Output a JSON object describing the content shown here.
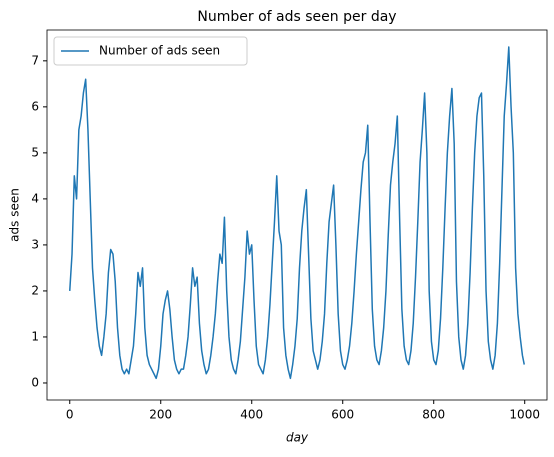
{
  "chart_data": {
    "type": "line",
    "title": "Number of ads seen per day",
    "x_label": "day",
    "y_label": "ads seen",
    "x": [
      0,
      5,
      10,
      15,
      20,
      25,
      30,
      35,
      40,
      45,
      50,
      55,
      60,
      65,
      70,
      75,
      80,
      85,
      90,
      95,
      100,
      105,
      110,
      115,
      120,
      125,
      130,
      135,
      140,
      145,
      150,
      155,
      160,
      165,
      170,
      175,
      180,
      185,
      190,
      195,
      200,
      205,
      210,
      215,
      220,
      225,
      230,
      235,
      240,
      245,
      250,
      255,
      260,
      265,
      270,
      275,
      280,
      285,
      290,
      295,
      300,
      305,
      310,
      315,
      320,
      325,
      330,
      335,
      340,
      345,
      350,
      355,
      360,
      365,
      370,
      375,
      380,
      385,
      390,
      395,
      400,
      405,
      410,
      415,
      420,
      425,
      430,
      435,
      440,
      445,
      450,
      455,
      460,
      465,
      470,
      475,
      480,
      485,
      490,
      495,
      500,
      505,
      510,
      515,
      520,
      525,
      530,
      535,
      540,
      545,
      550,
      555,
      560,
      565,
      570,
      575,
      580,
      585,
      590,
      595,
      600,
      605,
      610,
      615,
      620,
      625,
      630,
      635,
      640,
      645,
      650,
      655,
      660,
      665,
      670,
      675,
      680,
      685,
      690,
      695,
      700,
      705,
      710,
      715,
      720,
      725,
      730,
      735,
      740,
      745,
      750,
      755,
      760,
      765,
      770,
      775,
      780,
      785,
      790,
      795,
      800,
      805,
      810,
      815,
      820,
      825,
      830,
      835,
      840,
      845,
      850,
      855,
      860,
      865,
      870,
      875,
      880,
      885,
      890,
      895,
      900,
      905,
      910,
      915,
      920,
      925,
      930,
      935,
      940,
      945,
      950,
      955,
      960,
      965,
      970,
      975,
      980,
      985,
      990,
      995,
      999
    ],
    "series": [
      {
        "name": "Number of ads seen",
        "color": "#1f77b4",
        "values": [
          2.0,
          2.8,
          4.5,
          4.0,
          5.5,
          5.8,
          6.3,
          6.6,
          5.5,
          4.0,
          2.5,
          1.8,
          1.2,
          0.8,
          0.6,
          1.0,
          1.5,
          2.4,
          2.9,
          2.8,
          2.2,
          1.2,
          0.6,
          0.3,
          0.2,
          0.3,
          0.2,
          0.5,
          0.8,
          1.5,
          2.4,
          2.1,
          2.5,
          1.2,
          0.6,
          0.4,
          0.3,
          0.2,
          0.1,
          0.3,
          0.8,
          1.5,
          1.8,
          2.0,
          1.6,
          1.0,
          0.5,
          0.3,
          0.2,
          0.3,
          0.3,
          0.6,
          1.0,
          1.7,
          2.5,
          2.1,
          2.3,
          1.3,
          0.7,
          0.4,
          0.2,
          0.3,
          0.6,
          1.0,
          1.5,
          2.2,
          2.8,
          2.6,
          3.6,
          2.0,
          1.0,
          0.5,
          0.3,
          0.2,
          0.5,
          0.9,
          1.6,
          2.3,
          3.3,
          2.8,
          3.0,
          1.8,
          0.8,
          0.4,
          0.3,
          0.2,
          0.5,
          1.0,
          1.7,
          2.6,
          3.5,
          4.5,
          3.3,
          3.0,
          1.2,
          0.6,
          0.3,
          0.1,
          0.4,
          0.8,
          1.4,
          2.5,
          3.3,
          3.8,
          4.2,
          2.8,
          1.4,
          0.7,
          0.5,
          0.3,
          0.5,
          0.9,
          1.5,
          2.6,
          3.5,
          3.9,
          4.3,
          3.0,
          1.5,
          0.7,
          0.4,
          0.3,
          0.5,
          0.8,
          1.3,
          2.0,
          2.8,
          3.5,
          4.2,
          4.8,
          5.0,
          5.6,
          3.5,
          1.6,
          0.8,
          0.5,
          0.4,
          0.7,
          1.2,
          2.0,
          3.2,
          4.3,
          4.8,
          5.2,
          5.8,
          3.6,
          1.6,
          0.8,
          0.5,
          0.4,
          0.7,
          1.3,
          2.3,
          3.5,
          4.8,
          5.5,
          6.3,
          5.0,
          2.0,
          0.9,
          0.5,
          0.4,
          0.7,
          1.4,
          2.5,
          3.8,
          5.0,
          5.8,
          6.4,
          5.2,
          2.2,
          1.0,
          0.5,
          0.3,
          0.6,
          1.3,
          2.4,
          3.8,
          5.0,
          5.8,
          6.2,
          6.3,
          4.5,
          2.0,
          0.9,
          0.5,
          0.3,
          0.6,
          1.3,
          2.6,
          4.2,
          5.8,
          6.5,
          7.3,
          6.0,
          5.0,
          2.5,
          1.5,
          1.0,
          0.6,
          0.4
        ]
      }
    ],
    "xlim": [
      -50,
      1049
    ],
    "ylim": [
      -0.37,
      7.67
    ],
    "xticks": [
      0,
      200,
      400,
      600,
      800,
      1000
    ],
    "yticks": [
      0,
      1,
      2,
      3,
      4,
      5,
      6,
      7
    ],
    "grid": false,
    "legend": "upper left"
  }
}
